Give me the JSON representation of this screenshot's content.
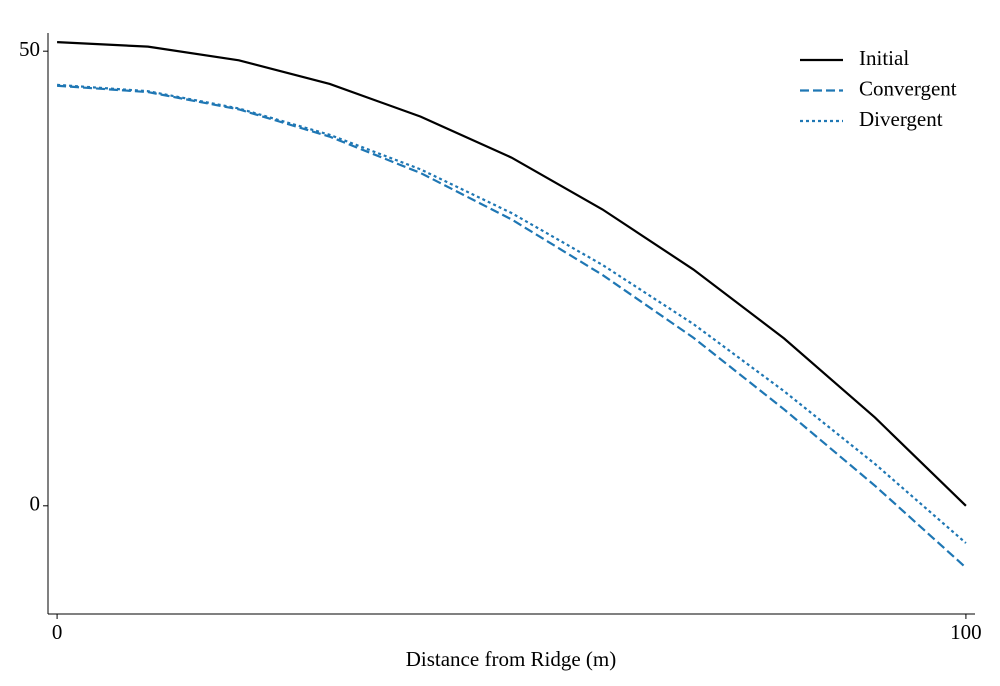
{
  "chart_data": {
    "type": "line",
    "x_label": "Distance from Ridge (m)",
    "x": [
      0,
      10,
      20,
      30,
      40,
      50,
      60,
      70,
      80,
      90,
      100
    ],
    "series": [
      {
        "name": "Initial",
        "color": "#000000",
        "style": "solid",
        "values": [
          51,
          50.5,
          49,
          46.4,
          42.8,
          38.3,
          32.6,
          26,
          18.4,
          9.7,
          0
        ]
      },
      {
        "name": "Convergent",
        "color": "#1f77b4",
        "style": "dashed",
        "values": [
          46.2,
          45.5,
          43.6,
          40.6,
          36.6,
          31.5,
          25.4,
          18.5,
          10.6,
          2.2,
          -6.8
        ]
      },
      {
        "name": "Divergent",
        "color": "#1f77b4",
        "style": "dotted",
        "values": [
          46.3,
          45.6,
          43.7,
          40.8,
          37.0,
          32.2,
          26.5,
          20.0,
          12.6,
          4.6,
          -4.1
        ]
      }
    ],
    "xlim": [
      -1,
      101
    ],
    "ylim": [
      -11.9,
      52
    ],
    "xticks": [
      0,
      100
    ],
    "yticks": [
      0,
      50
    ],
    "legend": "upper right"
  }
}
